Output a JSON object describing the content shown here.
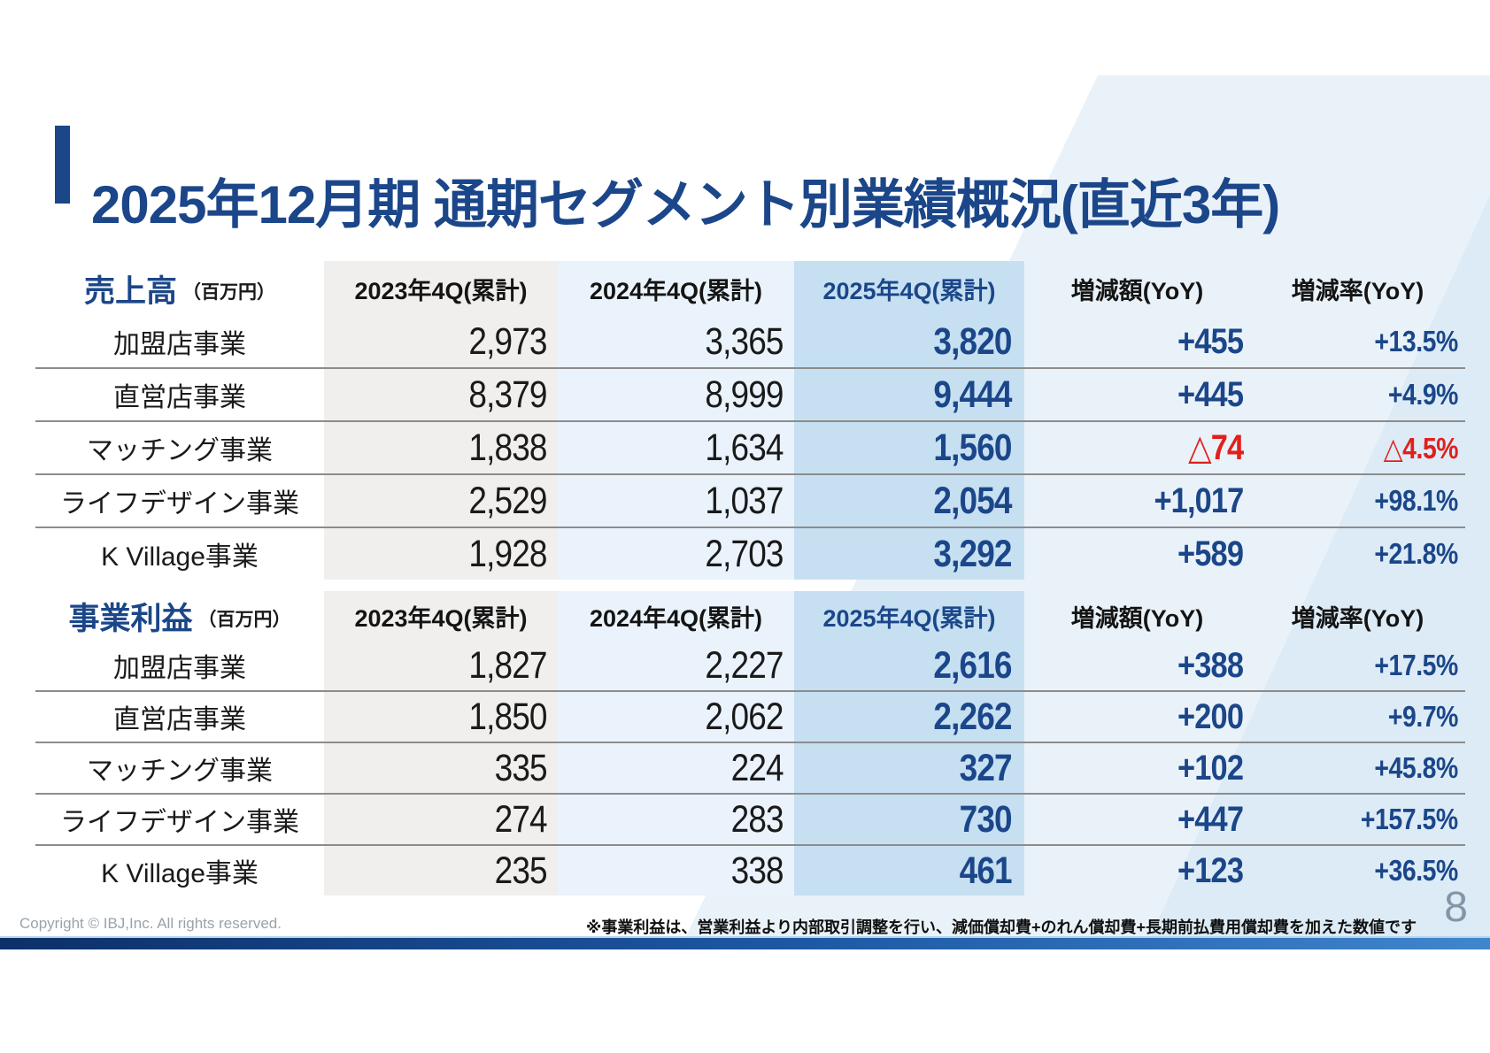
{
  "slide": {
    "title": "2025年12月期 通期セグメント別業績概況(直近3年)",
    "page_number": "8",
    "copyright": "Copyright © IBJ,Inc. All rights reserved.",
    "footnote": "※事業利益は、営業利益より内部取引調整を行い、減価償却費+のれん償却費+長期前払費用償却費を加えた数値です"
  },
  "columns": [
    "2023年4Q(累計)",
    "2024年4Q(累計)",
    "2025年4Q(累計)",
    "増減額(YoY)",
    "増減率(YoY)"
  ],
  "tables": [
    {
      "section_title": "売上高",
      "unit": "（百万円）",
      "rows": [
        {
          "label": "加盟店事業",
          "fy2023": "2,973",
          "fy2024": "3,365",
          "fy2025": "3,820",
          "yoy_amount": "+455",
          "yoy_rate": "+13.5%",
          "negative": false
        },
        {
          "label": "直営店事業",
          "fy2023": "8,379",
          "fy2024": "8,999",
          "fy2025": "9,444",
          "yoy_amount": "+445",
          "yoy_rate": "+4.9%",
          "negative": false
        },
        {
          "label": "マッチング事業",
          "fy2023": "1,838",
          "fy2024": "1,634",
          "fy2025": "1,560",
          "yoy_amount": "△74",
          "yoy_rate": "△4.5%",
          "negative": true
        },
        {
          "label": "ライフデザイン事業",
          "fy2023": "2,529",
          "fy2024": "1,037",
          "fy2025": "2,054",
          "yoy_amount": "+1,017",
          "yoy_rate": "+98.1%",
          "negative": false
        },
        {
          "label": "K Village事業",
          "fy2023": "1,928",
          "fy2024": "2,703",
          "fy2025": "3,292",
          "yoy_amount": "+589",
          "yoy_rate": "+21.8%",
          "negative": false
        }
      ]
    },
    {
      "section_title": "事業利益",
      "unit": "（百万円）",
      "rows": [
        {
          "label": "加盟店事業",
          "fy2023": "1,827",
          "fy2024": "2,227",
          "fy2025": "2,616",
          "yoy_amount": "+388",
          "yoy_rate": "+17.5%",
          "negative": false
        },
        {
          "label": "直営店事業",
          "fy2023": "1,850",
          "fy2024": "2,062",
          "fy2025": "2,262",
          "yoy_amount": "+200",
          "yoy_rate": "+9.7%",
          "negative": false
        },
        {
          "label": "マッチング事業",
          "fy2023": "335",
          "fy2024": "224",
          "fy2025": "327",
          "yoy_amount": "+102",
          "yoy_rate": "+45.8%",
          "negative": false
        },
        {
          "label": "ライフデザイン事業",
          "fy2023": "274",
          "fy2024": "283",
          "fy2025": "730",
          "yoy_amount": "+447",
          "yoy_rate": "+157.5%",
          "negative": false
        },
        {
          "label": "K Village事業",
          "fy2023": "235",
          "fy2024": "338",
          "fy2025": "461",
          "yoy_amount": "+123",
          "yoy_rate": "+36.5%",
          "negative": false
        }
      ]
    }
  ],
  "colors": {
    "accent_blue": "#1b4689",
    "negative_red": "#e0201d",
    "col_2023_bg": "#f0efed",
    "col_2024_bg": "#eaf3fb",
    "col_2025_bg": "#c6e0f2",
    "bottom_bar": "#1e59a6"
  }
}
